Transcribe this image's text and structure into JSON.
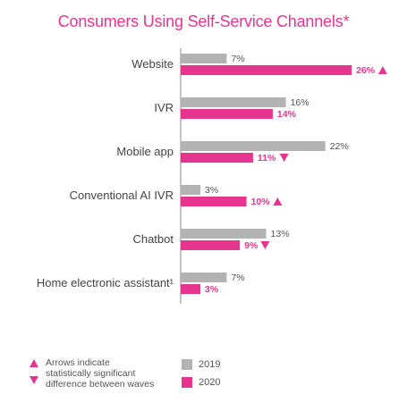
{
  "colors": {
    "title": "#e6358f",
    "series_2019": "#b3b3b3",
    "series_2020": "#e6358f",
    "label_2019": "#555555",
    "label_2020": "#e6358f",
    "category": "#444444",
    "axis": "#888888",
    "arrow": "#e6358f"
  },
  "chart_data": {
    "type": "bar",
    "orientation": "horizontal",
    "title": "Consumers Using Self-Service Channels*",
    "categories": [
      "Website",
      "IVR",
      "Mobile app",
      "Conventional AI IVR",
      "Chatbot",
      "Home electronic assistant¹"
    ],
    "series": [
      {
        "name": "2019",
        "values": [
          7,
          16,
          22,
          3,
          13,
          7
        ],
        "labels": [
          "7%",
          "16%",
          "22%",
          "3%",
          "13%",
          "7%"
        ]
      },
      {
        "name": "2020",
        "values": [
          26,
          14,
          11,
          10,
          9,
          3
        ],
        "labels": [
          "26%",
          "14%",
          "11%",
          "10%",
          "9%",
          "3%"
        ]
      }
    ],
    "arrows": [
      "up",
      "",
      "down",
      "up",
      "down",
      ""
    ],
    "xlim": [
      0,
      30
    ],
    "grid": false,
    "legend": {
      "position": "bottom",
      "note": [
        "Arrows indicate",
        "statistically significant",
        "difference between waves"
      ],
      "entries": [
        "2019",
        "2020"
      ]
    }
  }
}
